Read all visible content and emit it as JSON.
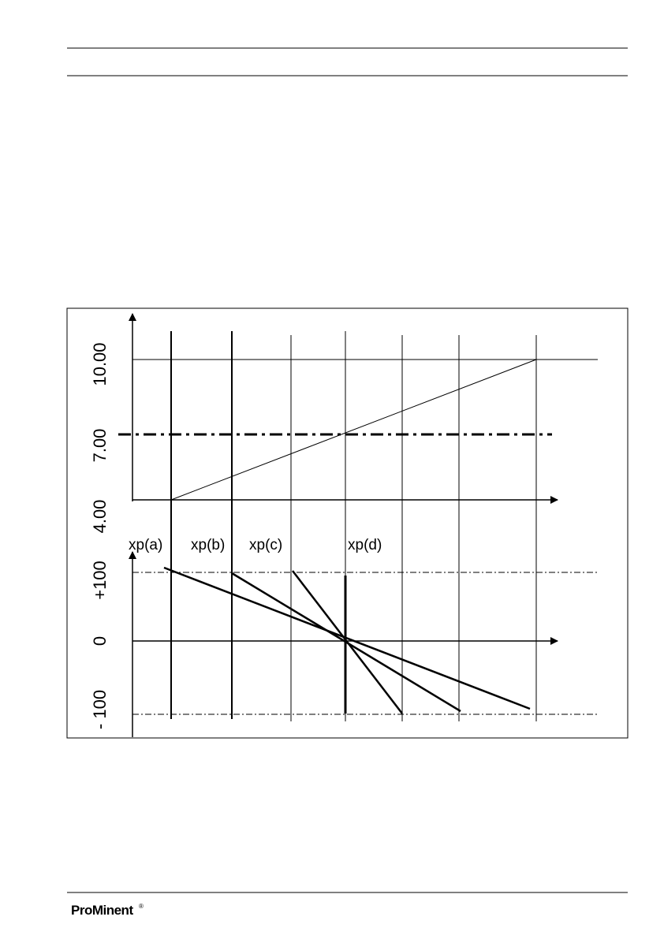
{
  "diagram": {
    "upper_axis_labels": [
      "10.00",
      "7.00",
      "4.00"
    ],
    "lower_axis_labels": [
      "+100",
      "0",
      "- 100"
    ],
    "xp_labels": [
      "xp(a)",
      "xp(b)",
      "xp(c)",
      "xp(d)"
    ]
  },
  "footer": {
    "logo": "ProMinent",
    "logo_mark": "®"
  }
}
